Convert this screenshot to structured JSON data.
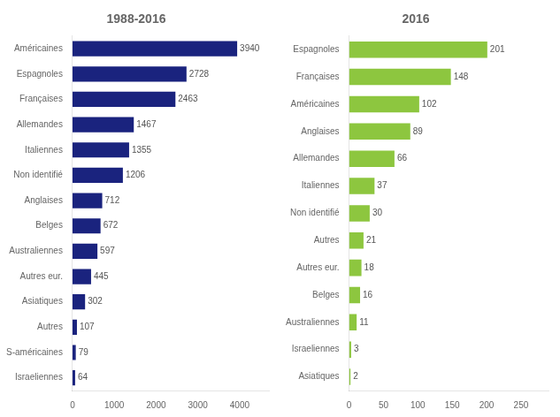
{
  "chart_data": [
    {
      "type": "bar",
      "orientation": "horizontal",
      "title": "1988-2016",
      "categories": [
        "Américaines",
        "Espagnoles",
        "Françaises",
        "Allemandes",
        "Italiennes",
        "Non identifié",
        "Anglaises",
        "Belges",
        "Australiennes",
        "Autres eur.",
        "Asiatiques",
        "Autres",
        "S-américaines",
        "Israeliennes"
      ],
      "values": [
        3940,
        2728,
        2463,
        1467,
        1355,
        1206,
        712,
        672,
        597,
        445,
        302,
        107,
        79,
        64
      ],
      "color": "#1a237e",
      "xlim": [
        0,
        4700
      ],
      "xticks": [
        0,
        1000,
        2000,
        3000,
        4000
      ],
      "grid": false,
      "data_labels": true
    },
    {
      "type": "bar",
      "orientation": "horizontal",
      "title": "2016",
      "categories": [
        "Espagnoles",
        "Françaises",
        "Américaines",
        "Anglaises",
        "Allemandes",
        "Italiennes",
        "Non identifié",
        "Autres",
        "Autres eur.",
        "Belges",
        "Australiennes",
        "Israeliennes",
        "Asiatiques"
      ],
      "values": [
        201,
        148,
        102,
        89,
        66,
        37,
        30,
        21,
        18,
        16,
        11,
        3,
        2
      ],
      "color": "#8dc63f",
      "xlim": [
        0,
        290
      ],
      "xticks": [
        0,
        50,
        100,
        150,
        200,
        250
      ],
      "grid": false,
      "data_labels": true
    }
  ]
}
